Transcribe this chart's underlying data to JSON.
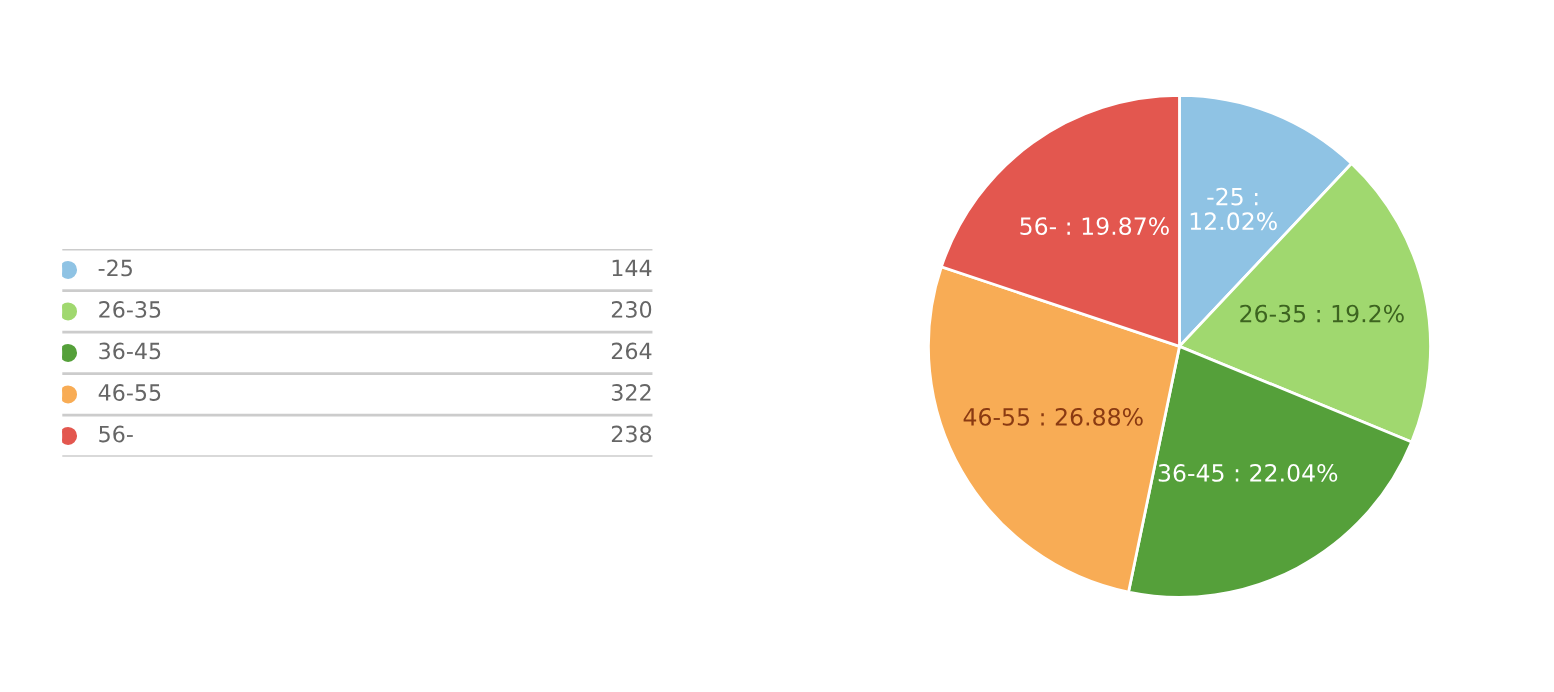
{
  "chart_data": [
    {
      "type": "pie",
      "categories": [
        "-25",
        "26-35",
        "36-45",
        "46-55",
        "56-"
      ],
      "values": [
        12.02,
        19.2,
        22.04,
        26.88,
        19.87
      ],
      "colors": [
        "#8fc3e4",
        "#a0d86f",
        "#55a03a",
        "#f8ac55",
        "#e3574f"
      ],
      "value_labels": [
        "-25 : 12.02%",
        "26-35 : 19.2%",
        "36-45 : 22.04%",
        "46-55 : 26.88%",
        "56- : 19.87%"
      ],
      "legend": "left"
    },
    {
      "type": "other",
      "values": [
        144,
        230,
        264,
        322,
        238
      ],
      "data_labels": true
    }
  ]
}
